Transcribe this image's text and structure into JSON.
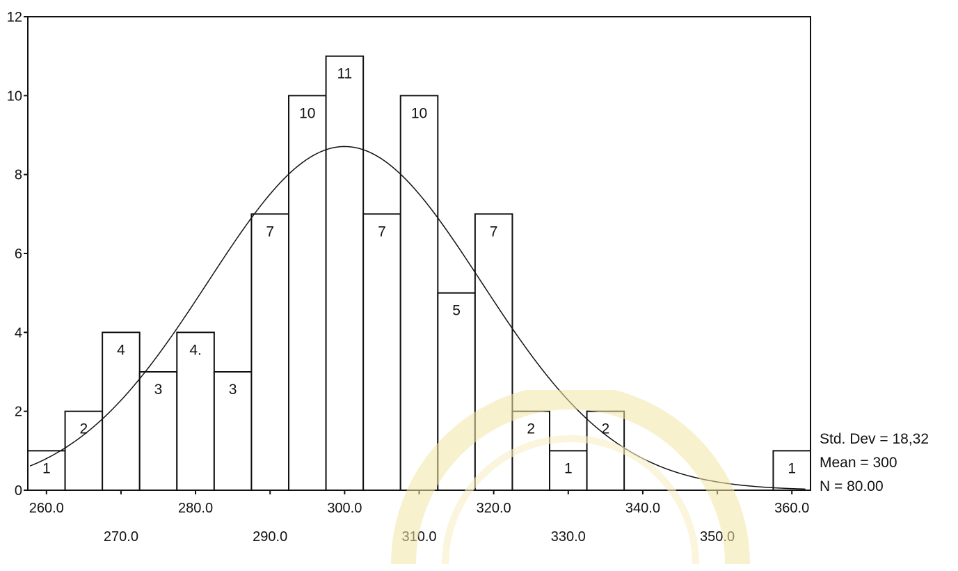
{
  "chart_data": {
    "type": "bar",
    "title": "",
    "xlabel": "",
    "ylabel": "",
    "bin_width": 5,
    "bins": [
      {
        "center": 260,
        "value": 1
      },
      {
        "center": 265,
        "value": 2
      },
      {
        "center": 270,
        "value": 4
      },
      {
        "center": 275,
        "value": 3
      },
      {
        "center": 280,
        "value": 4
      },
      {
        "center": 285,
        "value": 3
      },
      {
        "center": 290,
        "value": 7
      },
      {
        "center": 295,
        "value": 10
      },
      {
        "center": 300,
        "value": 11
      },
      {
        "center": 305,
        "value": 7
      },
      {
        "center": 310,
        "value": 10
      },
      {
        "center": 315,
        "value": 5
      },
      {
        "center": 320,
        "value": 7
      },
      {
        "center": 325,
        "value": 2
      },
      {
        "center": 330,
        "value": 1
      },
      {
        "center": 335,
        "value": 2
      },
      {
        "center": 360,
        "value": 1
      }
    ],
    "bar_label_texts": [
      "1",
      "2",
      "4",
      "3",
      "4.",
      "3",
      "7",
      "10",
      "11",
      "7",
      "10",
      "5",
      "7",
      "2",
      "1",
      "2",
      "1"
    ],
    "x_ticks_upper": [
      "260.0",
      "280.0",
      "300.0",
      "320.0",
      "340.0",
      "360.0"
    ],
    "x_ticks_lower": [
      "270.0",
      "290.0",
      "310.0",
      "330.0",
      "350.0"
    ],
    "y_ticks": [
      "0",
      "2",
      "4",
      "6",
      "8",
      "10",
      "12"
    ],
    "ylim": [
      0,
      12
    ],
    "xlim": [
      257.5,
      362.5
    ],
    "normal_curve": {
      "mean": 300,
      "std_dev": 18.32,
      "n": 80
    },
    "stats": {
      "std_dev": "Std. Dev = 18,32",
      "mean": "Mean = 300",
      "n": "N = 80.00"
    },
    "grid": false,
    "legend": "none"
  }
}
